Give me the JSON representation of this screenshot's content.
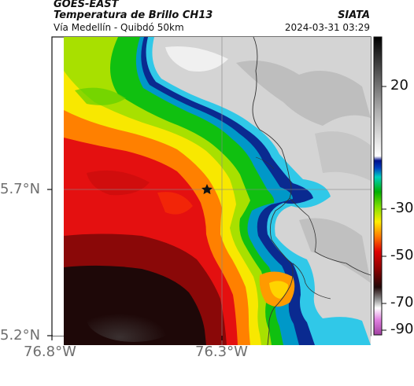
{
  "header": {
    "satellite": "GOES-EAST",
    "product": "Temperatura de Brillo CH13",
    "region": "Vía Medellín - Quibdó 50km",
    "brand": "SIATA",
    "datetime": "2024-03-31 03:29"
  },
  "axes": {
    "lat_labels": [
      "5.7°N",
      "5.2°N"
    ],
    "lon_labels": [
      "76.8°W",
      "76.3°W"
    ]
  },
  "colorbar": {
    "tick_labels": [
      "20",
      "-30",
      "-50",
      "-70",
      "-90"
    ]
  },
  "colors": {
    "cloud_coldest": "#1a0a0a",
    "cloud_red": "#e00000",
    "cloud_orange": "#ff6a00",
    "cloud_yellow": "#ffee00",
    "cloud_green": "#00c000",
    "cloud_blue": "#0030a0",
    "cloud_cyan": "#20c0e0",
    "clear_gray": "#d0d0d0"
  }
}
